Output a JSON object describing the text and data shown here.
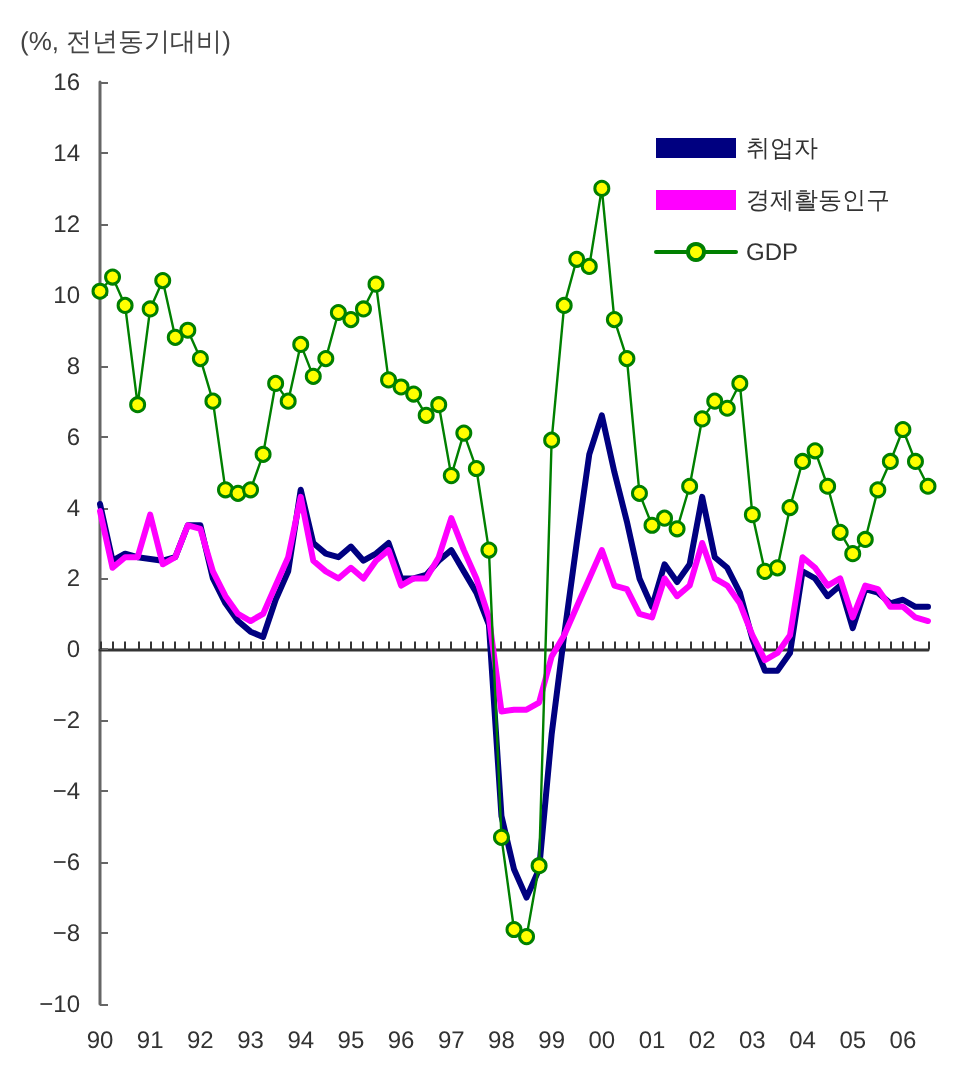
{
  "chart_data": {
    "type": "line",
    "ylabel": "(%, 전년동기대비)",
    "categories": [
      "90",
      null,
      null,
      null,
      "91",
      null,
      null,
      null,
      "92",
      null,
      null,
      null,
      "93",
      null,
      null,
      null,
      "94",
      null,
      null,
      null,
      "95",
      null,
      null,
      null,
      "96",
      null,
      null,
      null,
      "97",
      null,
      null,
      null,
      "98",
      null,
      null,
      null,
      "99",
      null,
      null,
      null,
      "00",
      null,
      null,
      null,
      "01",
      null,
      null,
      null,
      "02",
      null,
      null,
      null,
      "03",
      null,
      null,
      null,
      "04",
      null,
      null,
      null,
      "05",
      null,
      null,
      null,
      "06",
      null,
      null
    ],
    "series": [
      {
        "name": "취업자",
        "color": "#000080",
        "values": [
          4.1,
          2.5,
          2.7,
          2.6,
          null,
          2.5,
          2.6,
          3.5,
          3.5,
          2.0,
          1.3,
          0.8,
          0.5,
          0.35,
          1.4,
          2.2,
          4.5,
          3.0,
          2.7,
          2.6,
          2.9,
          2.5,
          2.7,
          3.0,
          2.0,
          2.0,
          2.1,
          2.5,
          2.8,
          2.2,
          1.6,
          0.7,
          -4.7,
          -6.2,
          -7.0,
          -6.2,
          -2.4,
          0.4,
          3.0,
          5.5,
          6.6,
          5.0,
          3.6,
          2.0,
          1.2,
          2.4,
          1.9,
          2.4,
          4.3,
          2.6,
          2.3,
          1.6,
          0.3,
          -0.6,
          -0.6,
          -0.1,
          2.2,
          2.0,
          1.5,
          1.8,
          0.6,
          1.7,
          1.6,
          1.3,
          1.4,
          1.2,
          1.2
        ]
      },
      {
        "name": "경제활동인구",
        "color": "#ff00ff",
        "values": [
          3.9,
          2.3,
          2.6,
          2.6,
          3.8,
          2.4,
          2.6,
          3.5,
          3.4,
          2.2,
          1.5,
          1.0,
          0.8,
          1.0,
          1.8,
          2.6,
          4.3,
          2.5,
          2.2,
          2.0,
          2.3,
          2.0,
          2.5,
          2.8,
          1.8,
          2.0,
          2.0,
          2.6,
          3.7,
          2.8,
          2.0,
          0.9,
          -1.75,
          -1.7,
          -1.7,
          -1.5,
          -0.2,
          0.4,
          1.2,
          2.0,
          2.8,
          1.8,
          1.7,
          1.0,
          0.9,
          2.0,
          1.5,
          1.8,
          3.0,
          2.0,
          1.8,
          1.3,
          0.4,
          -0.3,
          -0.1,
          0.4,
          2.6,
          2.3,
          1.8,
          2.0,
          0.9,
          1.8,
          1.7,
          1.2,
          1.2,
          0.9,
          0.8
        ]
      },
      {
        "name": "GDP",
        "color": "#008000",
        "marker": "circle",
        "values": [
          10.1,
          10.5,
          9.7,
          6.9,
          9.6,
          10.4,
          8.8,
          9.0,
          8.2,
          7.0,
          4.5,
          4.4,
          4.5,
          5.5,
          7.5,
          7.0,
          8.6,
          7.7,
          8.2,
          9.5,
          9.3,
          9.6,
          10.3,
          7.6,
          7.4,
          7.2,
          6.6,
          6.9,
          4.9,
          6.1,
          5.1,
          2.8,
          -5.3,
          -7.9,
          -8.1,
          -6.1,
          5.9,
          9.7,
          11.0,
          10.8,
          13.0,
          9.3,
          8.2,
          4.4,
          3.5,
          3.7,
          3.4,
          4.6,
          6.5,
          7.0,
          6.8,
          7.5,
          3.8,
          2.2,
          2.3,
          4.0,
          5.3,
          5.6,
          4.6,
          3.3,
          2.7,
          3.1,
          4.5,
          5.3,
          6.2,
          5.3,
          4.6
        ]
      }
    ],
    "ylim": [
      -10,
      16
    ],
    "yticks": [
      -10,
      -8,
      -6,
      -4,
      -2,
      0,
      2,
      4,
      6,
      8,
      10,
      12,
      14,
      16
    ],
    "legend": "top right",
    "marker": "none",
    "line_style": "solid"
  }
}
